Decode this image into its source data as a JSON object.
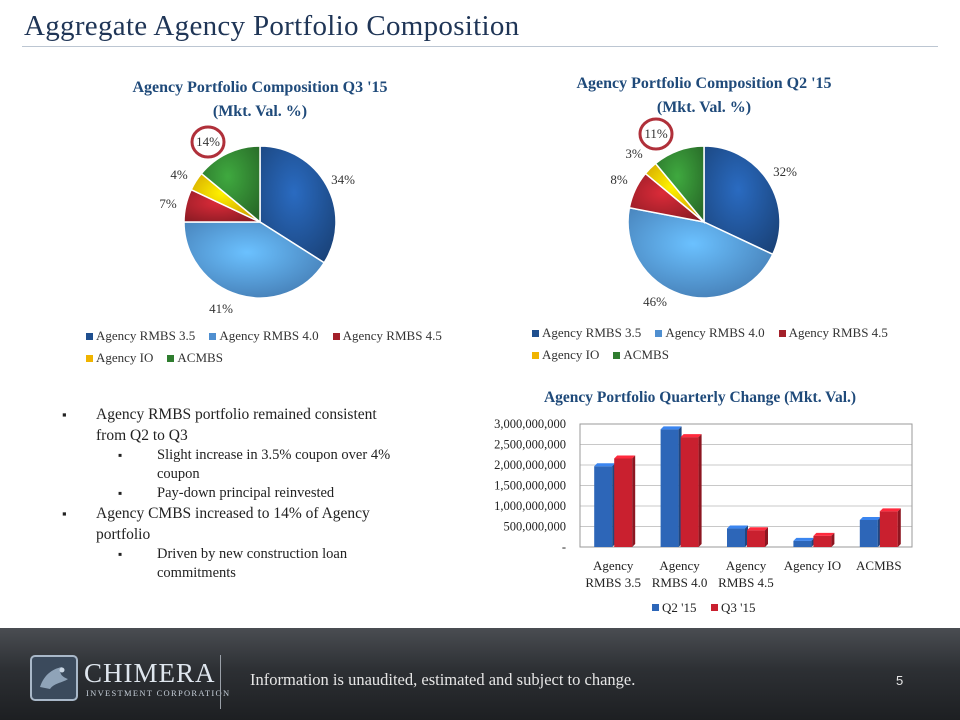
{
  "slide": {
    "title": "Aggregate Agency Portfolio Composition",
    "page_number": "5",
    "footer_note": "Information is unaudited, estimated and subject to change.",
    "logo_main": "CHIMERA",
    "logo_sub": "INVESTMENT CORPORATION"
  },
  "colors": {
    "rmbs35": "#1f4f8f",
    "rmbs40": "#4f8fd0",
    "rmbs45": "#a3202a",
    "io": "#f0b400",
    "acmbs": "#2f7d2f",
    "q2": "#2d66b8",
    "q3": "#c9202f",
    "title_blue": "#1f4a7a",
    "highlight_ring": "#b0303a"
  },
  "bullets": [
    {
      "text": "Agency RMBS portfolio  remained consistent from Q2 to Q3",
      "level": 1
    },
    {
      "text": "Slight increase in 3.5% coupon over 4% coupon",
      "level": 2
    },
    {
      "text": "Pay-down principal reinvested",
      "level": 2
    },
    {
      "text": "Agency CMBS increased to 14% of Agency portfolio",
      "level": 1
    },
    {
      "text": "Driven by new construction loan commitments",
      "level": 2
    }
  ],
  "chart_data": [
    {
      "type": "pie",
      "title": "Agency Portfolio Composition Q3 '15",
      "subtitle": "(Mkt. Val. %)",
      "categories": [
        "Agency RMBS 3.5",
        "Agency RMBS 4.0",
        "Agency RMBS 4.5",
        "Agency IO",
        "ACMBS"
      ],
      "values": [
        34,
        41,
        7,
        4,
        14
      ],
      "labels": [
        "34%",
        "41%",
        "7%",
        "4%",
        "14%"
      ],
      "highlighted": "ACMBS",
      "legend": "bottom"
    },
    {
      "type": "pie",
      "title": "Agency Portfolio Composition Q2 '15",
      "subtitle": "(Mkt. Val. %)",
      "categories": [
        "Agency RMBS 3.5",
        "Agency RMBS 4.0",
        "Agency RMBS 4.5",
        "Agency IO",
        "ACMBS"
      ],
      "values": [
        32,
        46,
        8,
        3,
        11
      ],
      "labels": [
        "32%",
        "46%",
        "8%",
        "3%",
        "11%"
      ],
      "highlighted": "ACMBS",
      "legend": "bottom"
    },
    {
      "type": "bar",
      "title": "Agency Portfolio Quarterly Change (Mkt. Val.)",
      "categories": [
        "Agency RMBS 3.5",
        "Agency RMBS 4.0",
        "Agency RMBS 4.5",
        "Agency IO",
        "ACMBS"
      ],
      "series": [
        {
          "name": "Q2 '15",
          "values": [
            1970000000,
            2870000000,
            450000000,
            150000000,
            660000000
          ]
        },
        {
          "name": "Q3 '15",
          "values": [
            2160000000,
            2680000000,
            410000000,
            270000000,
            870000000
          ]
        }
      ],
      "ylim": [
        0,
        3000000000
      ],
      "yticks": [
        0,
        500000000,
        1000000000,
        1500000000,
        2000000000,
        2500000000,
        3000000000
      ],
      "ytick_labels": [
        "-",
        "500,000,000",
        "1,000,000,000",
        "1,500,000,000",
        "2,000,000,000",
        "2,500,000,000",
        "3,000,000,000"
      ],
      "grid": true,
      "legend": "bottom"
    }
  ]
}
